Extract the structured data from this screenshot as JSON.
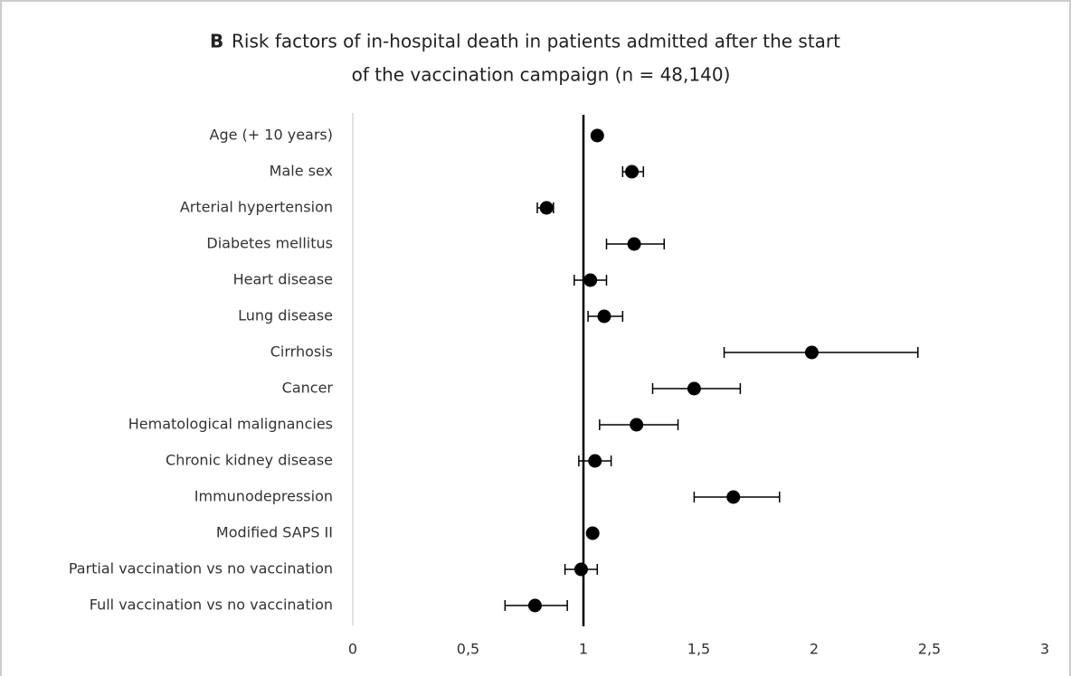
{
  "chart_data": {
    "type": "forest",
    "panel_label": "B",
    "title": [
      "Risk factors of in-hospital death in patients admitted after the start",
      "of the vaccination campaign (n = 48,140)"
    ],
    "categories": [
      "Age (+ 10 years)",
      "Male sex",
      "Arterial hypertension",
      "Diabetes mellitus",
      "Heart disease",
      "Lung disease",
      "Cirrhosis",
      "Cancer",
      "Hematological malignancies",
      "Chronic kidney disease",
      "Immunodepression",
      "Modified SAPS II",
      "Partial vaccination vs no vaccination",
      "Full vaccination vs no vaccination"
    ],
    "series": [
      {
        "color": "#000000",
        "values": [
          1.06,
          1.21,
          0.84,
          1.22,
          1.03,
          1.09,
          1.99,
          1.48,
          1.23,
          1.05,
          1.65,
          1.04,
          0.99,
          0.79
        ],
        "lower": [
          1.05,
          1.17,
          0.8,
          1.1,
          0.96,
          1.02,
          1.61,
          1.3,
          1.07,
          0.98,
          1.48,
          1.03,
          0.92,
          0.66
        ],
        "upper": [
          1.07,
          1.26,
          0.87,
          1.35,
          1.1,
          1.17,
          2.45,
          1.68,
          1.41,
          1.12,
          1.85,
          1.05,
          1.06,
          0.93
        ]
      }
    ],
    "xlim": [
      0,
      3
    ],
    "xticks": [
      0,
      {
        "value": 0.5,
        "label": "0,5"
      },
      1,
      {
        "value": 1.5,
        "label": "1,5"
      },
      2,
      {
        "value": 2.5,
        "label": "2,5"
      },
      3
    ],
    "reference_line": 1
  }
}
